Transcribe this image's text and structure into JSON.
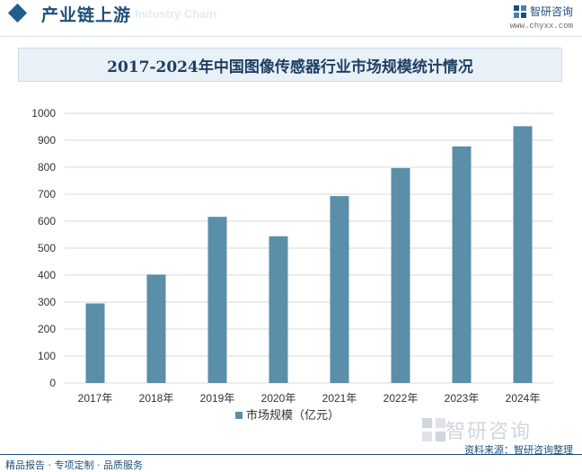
{
  "header": {
    "section_title": "产业链上游",
    "ghost_text": "Industry Chain",
    "brand_name": "智研咨询",
    "brand_url": "www.chyxx.com"
  },
  "colors": {
    "bar": "#5b8ea8",
    "accent": "#1f4e79",
    "grid": "#d9d9d9"
  },
  "chart_data": {
    "type": "bar",
    "title": "2017-2024年中国图像传感器行业市场规模统计情况",
    "categories": [
      "2017年",
      "2018年",
      "2019年",
      "2020年",
      "2021年",
      "2022年",
      "2023年",
      "2024年"
    ],
    "series": [
      {
        "name": "市场规模（亿元）",
        "values": [
          295,
          402,
          616,
          544,
          693,
          797,
          877,
          952
        ]
      }
    ],
    "xlabel": "",
    "ylabel": "",
    "ylim": [
      0,
      1000
    ],
    "yticks": [
      0,
      100,
      200,
      300,
      400,
      500,
      600,
      700,
      800,
      900,
      1000
    ],
    "grid": true,
    "legend": "bottom-center"
  },
  "footer": {
    "left": "精品报告 · 专项定制 · 品质服务",
    "source": "资料来源：智研咨询整理",
    "watermark_brand": "智研咨询"
  }
}
